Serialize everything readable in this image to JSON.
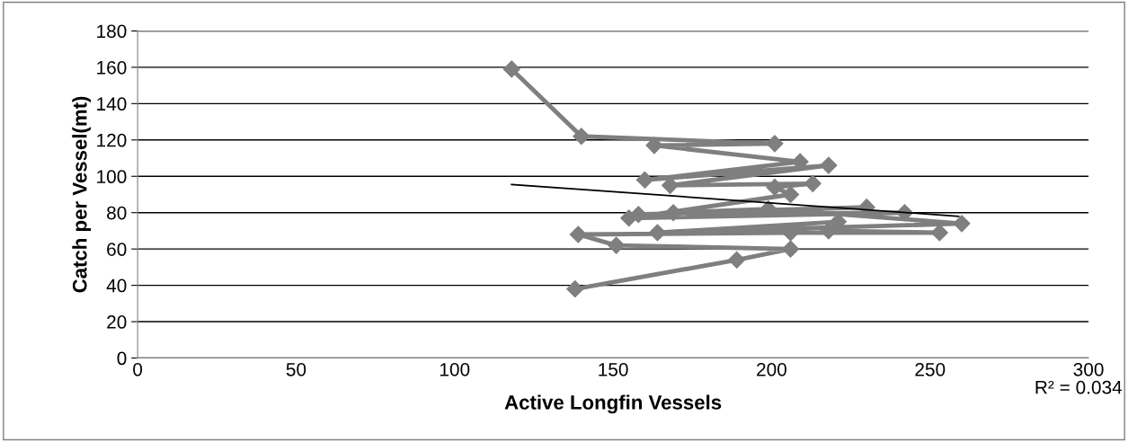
{
  "chart_data": {
    "type": "line",
    "xlabel": "Active Longfin Vessels",
    "ylabel": "Catch per Vessel(mt)",
    "series": [
      {
        "color": "#7f7f7f",
        "marker": "diamond",
        "x": [
          118,
          140,
          201,
          163,
          209,
          160,
          218,
          168,
          213,
          201,
          206,
          155,
          242,
          158,
          230,
          169,
          199,
          260,
          164,
          221,
          218,
          253,
          206,
          139,
          151,
          206,
          189,
          138
        ],
        "values": [
          159,
          122,
          118,
          117,
          108,
          98,
          106,
          95,
          96,
          94,
          90,
          77,
          80,
          79,
          83,
          80,
          82,
          74,
          69,
          75,
          70,
          69,
          69,
          68,
          62,
          60,
          54,
          38
        ]
      },
      {
        "color": "#000000",
        "marker": "none",
        "x": [
          118,
          259
        ],
        "values": [
          95.5,
          78
        ]
      }
    ],
    "annotations": [
      "R² = 0.034"
    ],
    "xlim": [
      0,
      300
    ],
    "xticks": [
      0,
      50,
      100,
      150,
      200,
      250,
      300
    ],
    "ylim": [
      0,
      180
    ],
    "yticks": [
      0,
      20,
      40,
      60,
      80,
      100,
      120,
      140,
      160,
      180
    ],
    "grid": "y",
    "legend": false
  }
}
